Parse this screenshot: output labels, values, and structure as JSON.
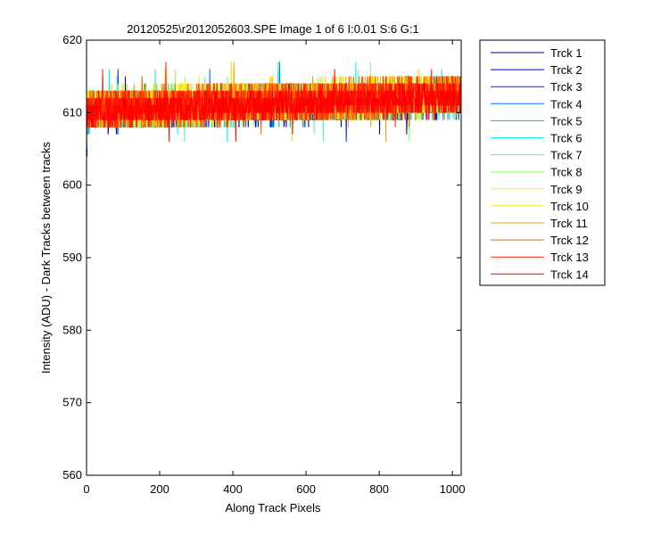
{
  "chart_data": {
    "type": "line",
    "title": "20120525\\r2012052603.SPE  Image 1 of 6  I:0.01  S:6  G:1",
    "xlabel": "Along Track Pixels",
    "ylabel": "Intensity (ADU) - Dark Tracks between tracks",
    "xlim": [
      0,
      1024
    ],
    "ylim": [
      560,
      620
    ],
    "xticks": [
      0,
      200,
      400,
      600,
      800,
      1000
    ],
    "yticks": [
      560,
      570,
      580,
      590,
      600,
      610,
      620
    ],
    "grid": false,
    "legend_position": "outside-right",
    "x_points": 1024,
    "series": [
      {
        "name": "Trck 1",
        "color": "#00008f",
        "mean": 611.0,
        "noise": 1.6,
        "slope": 2.0
      },
      {
        "name": "Trck 2",
        "color": "#0000d0",
        "mean": 611.2,
        "noise": 1.6,
        "slope": 2.0
      },
      {
        "name": "Trck 3",
        "color": "#0020ff",
        "mean": 611.3,
        "noise": 1.6,
        "slope": 2.0
      },
      {
        "name": "Trck 4",
        "color": "#0070ff",
        "mean": 611.2,
        "noise": 1.6,
        "slope": 2.0
      },
      {
        "name": "Trck 5",
        "color": "#00b0ff",
        "mean": 611.0,
        "noise": 1.6,
        "slope": 2.0
      },
      {
        "name": "Trck 6",
        "color": "#10f0f0",
        "mean": 611.4,
        "noise": 1.6,
        "slope": 2.0
      },
      {
        "name": "Trck 7",
        "color": "#50ffb0",
        "mean": 611.3,
        "noise": 1.6,
        "slope": 2.0
      },
      {
        "name": "Trck 8",
        "color": "#90ff70",
        "mean": 611.2,
        "noise": 1.6,
        "slope": 2.0
      },
      {
        "name": "Trck 9",
        "color": "#d0ff30",
        "mean": 611.5,
        "noise": 1.7,
        "slope": 2.0
      },
      {
        "name": "Trck 10",
        "color": "#ffe000",
        "mean": 611.6,
        "noise": 1.7,
        "slope": 2.0
      },
      {
        "name": "Trck 11",
        "color": "#ffa000",
        "mean": 611.5,
        "noise": 1.7,
        "slope": 2.0
      },
      {
        "name": "Trck 12",
        "color": "#ff6000",
        "mean": 611.4,
        "noise": 1.7,
        "slope": 2.0
      },
      {
        "name": "Trck 13",
        "color": "#ff2000",
        "mean": 611.3,
        "noise": 1.6,
        "slope": 2.0
      },
      {
        "name": "Trck 14",
        "color": "#ff0000",
        "mean": 611.2,
        "noise": 1.2,
        "slope": 2.0
      }
    ]
  }
}
